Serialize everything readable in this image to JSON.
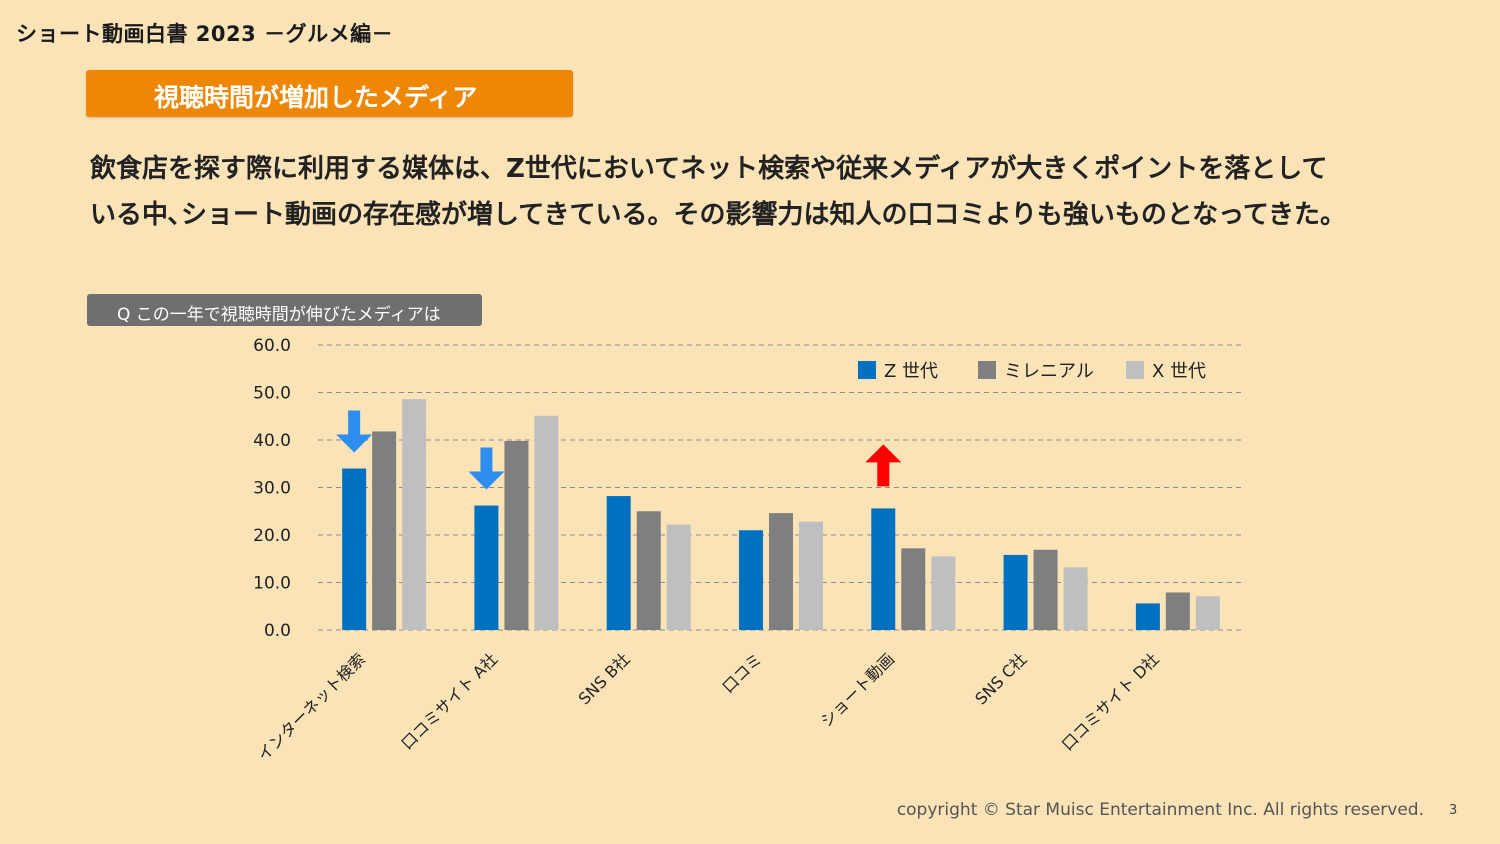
{
  "header": {
    "doc_title": "ショート動画白書 2023 －グルメ編－",
    "section_title": "視聴時間が増加したメディア"
  },
  "lead": {
    "line1": "飲食店を探す際に利用する媒体は、Z世代においてネット検索や従来メディアが大きくポイントを落として",
    "line2": "いる中､ショート動画の存在感が増してきている。その影響力は知人の口コミよりも強いものとなってきた。"
  },
  "question_label": "Q この一年で視聴時間が伸びたメディアは",
  "chart_data": {
    "type": "bar",
    "categories": [
      "インターネット検索",
      "口コミサイト A社",
      "SNS B社",
      "口コミ",
      "ショート動画",
      "SNS C社",
      "口コミサイト D社"
    ],
    "series": [
      {
        "name": "Z 世代",
        "color": "#0070c0",
        "values": [
          34.0,
          26.2,
          28.2,
          21.0,
          25.6,
          15.8,
          5.6
        ]
      },
      {
        "name": "ミレニアル",
        "color": "#7f7f7f",
        "values": [
          41.8,
          39.8,
          25.0,
          24.6,
          17.2,
          16.9,
          7.9
        ]
      },
      {
        "name": "X 世代",
        "color": "#bfbfbf",
        "values": [
          48.6,
          45.1,
          22.2,
          22.8,
          15.5,
          13.2,
          7.1
        ]
      }
    ],
    "yticks": [
      "60.0",
      "50.0",
      "40.0",
      "30.0",
      "20.0",
      "10.0",
      "0.0"
    ],
    "ylim": [
      0,
      60
    ],
    "grid": true,
    "legend": "top-right",
    "annotations": [
      {
        "category": "インターネット検索",
        "series": "Z 世代",
        "direction": "down",
        "color": "#2e8ef0"
      },
      {
        "category": "口コミサイト A社",
        "series": "Z 世代",
        "direction": "down",
        "color": "#2e8ef0"
      },
      {
        "category": "ショート動画",
        "series": "Z 世代",
        "direction": "up",
        "color": "#ff0000"
      }
    ]
  },
  "footer": {
    "copyright": "copyright © Star Muisc Entertainment Inc. All rights reserved.",
    "page": "3"
  }
}
